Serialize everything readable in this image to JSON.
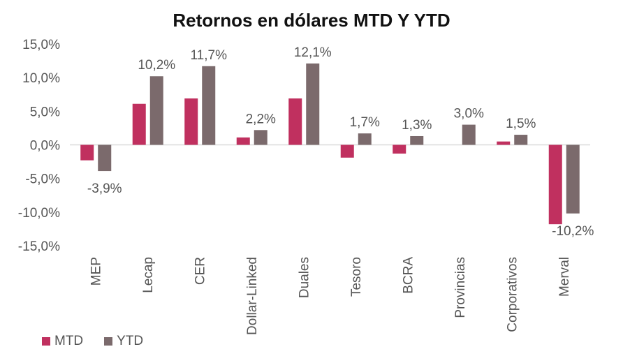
{
  "chart_data": {
    "type": "bar",
    "title": "Retornos en dólares MTD Y YTD",
    "categories": [
      "MEP",
      "Lecap",
      "CER",
      "Dollar-Linked",
      "Duales",
      "Tesoro",
      "BCRA",
      "Provincias",
      "Corporativos",
      "Merval"
    ],
    "series": [
      {
        "name": "MTD",
        "color": "#c0305f",
        "values": [
          -2.3,
          6.1,
          6.9,
          1.1,
          6.9,
          -1.9,
          -1.3,
          0.0,
          0.5,
          -11.8
        ]
      },
      {
        "name": "YTD",
        "color": "#7b6a6c",
        "values": [
          -3.9,
          10.2,
          11.7,
          2.2,
          12.1,
          1.7,
          1.3,
          3.0,
          1.5,
          -10.2
        ]
      }
    ],
    "data_labels": {
      "YTD": [
        "-3,9%",
        "10,2%",
        "11,7%",
        "2,2%",
        "12,1%",
        "1,7%",
        "1,3%",
        "3,0%",
        "1,5%",
        "-10,2%"
      ]
    },
    "ylim": [
      -15,
      15
    ],
    "yticks": [
      15,
      10,
      5,
      0,
      -5,
      -10,
      -15
    ],
    "ytick_labels": [
      "15,0%",
      "10,0%",
      "5,0%",
      "0,0%",
      "-5,0%",
      "-10,0%",
      "-15,0%"
    ],
    "xlabel": "",
    "ylabel": "",
    "grid": false,
    "legend_position": "bottom-left"
  }
}
